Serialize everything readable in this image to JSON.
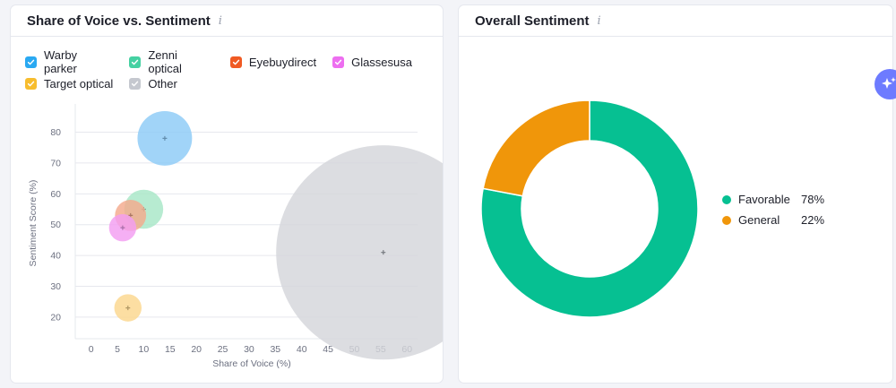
{
  "left_card": {
    "title": "Share of Voice vs. Sentiment",
    "info_icon": "i"
  },
  "right_card": {
    "title": "Overall Sentiment",
    "info_icon": "i"
  },
  "legend": [
    [
      {
        "label": "Warby parker",
        "color": "#2aa9f2"
      },
      {
        "label": "Zenni optical",
        "color": "#45d1a2"
      },
      {
        "label": "Eyebuydirect",
        "color": "#f05a23"
      },
      {
        "label": "Glassesusa",
        "color": "#ed6ef0"
      }
    ],
    [
      {
        "label": "Target optical",
        "color": "#f7bd2e"
      },
      {
        "label": "Other",
        "color": "#c5c8cf"
      }
    ]
  ],
  "chart_data": [
    {
      "type": "scatter",
      "title": "Share of Voice vs. Sentiment",
      "xlabel": "Share of Voice (%)",
      "ylabel": "Sentiment Score (%)",
      "xlim": [
        -3,
        62
      ],
      "ylim": [
        13,
        88
      ],
      "xticks": [
        0,
        5,
        10,
        15,
        20,
        25,
        30,
        35,
        40,
        45,
        50,
        55,
        60
      ],
      "yticks": [
        20,
        30,
        40,
        50,
        60,
        70,
        80
      ],
      "series": [
        {
          "name": "Warby parker",
          "x": 14,
          "y": 78,
          "size": 14,
          "color": "#8ccaf7"
        },
        {
          "name": "Zenni optical",
          "x": 10,
          "y": 55,
          "size": 10,
          "color": "#a7e6c7"
        },
        {
          "name": "Eyebuydirect",
          "x": 7.5,
          "y": 53,
          "size": 8,
          "color": "#f4a98c"
        },
        {
          "name": "Glassesusa",
          "x": 6,
          "y": 49,
          "size": 7,
          "color": "#f39ef2"
        },
        {
          "name": "Target optical",
          "x": 7,
          "y": 23,
          "size": 7,
          "color": "#fbd78d"
        },
        {
          "name": "Other",
          "x": 55.5,
          "y": 41,
          "size": 55,
          "color": "#d4d6db"
        }
      ]
    },
    {
      "type": "pie",
      "title": "Overall Sentiment",
      "labels": [
        "Favorable",
        "General"
      ],
      "values": [
        78,
        22
      ],
      "value_labels": [
        "78%",
        "22%"
      ],
      "colors": [
        "#06c092",
        "#f0960a"
      ]
    }
  ]
}
